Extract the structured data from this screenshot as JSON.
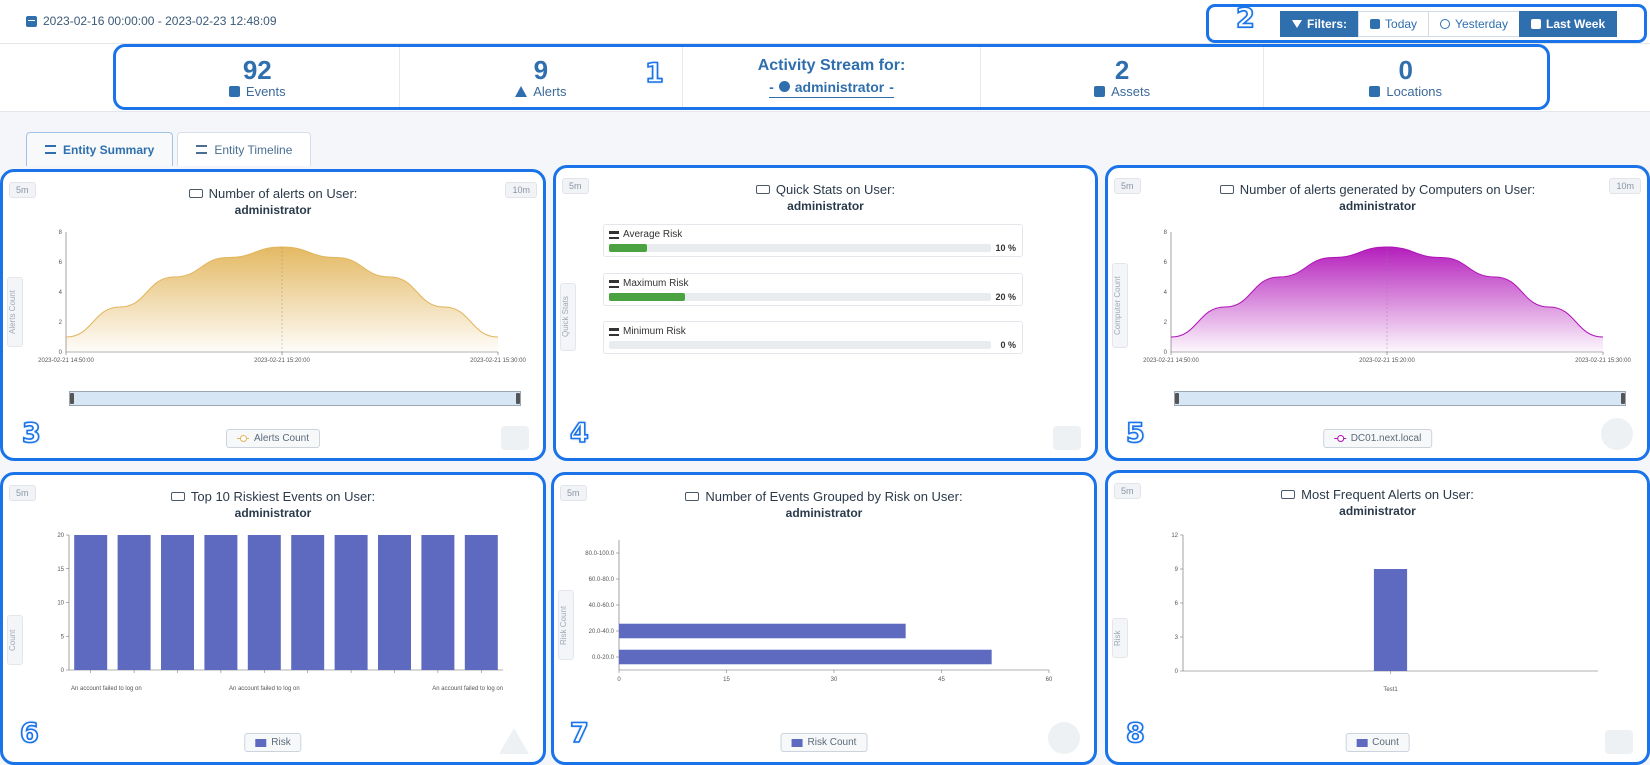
{
  "header": {
    "date_range": "2023-02-16 00:00:00 - 2023-02-23 12:48:09",
    "filters": [
      {
        "label": "Filters:",
        "icon": "funnel-icon",
        "primary": true
      },
      {
        "label": "Today",
        "icon": "calendar-icon",
        "primary": false
      },
      {
        "label": "Yesterday",
        "icon": "history-icon",
        "primary": false
      },
      {
        "label": "Last Week",
        "icon": "calendar-icon",
        "primary": true
      }
    ]
  },
  "stats": {
    "events": {
      "value": "92",
      "label": "Events"
    },
    "alerts": {
      "value": "9",
      "label": "Alerts"
    },
    "activity_title": "Activity Stream for:",
    "activity_user": "administrator",
    "assets": {
      "value": "2",
      "label": "Assets"
    },
    "locations": {
      "value": "0",
      "label": "Locations"
    }
  },
  "tabs": [
    {
      "label": "Entity Summary",
      "active": true
    },
    {
      "label": "Entity Timeline",
      "active": false
    }
  ],
  "badges": [
    "1",
    "2",
    "3",
    "4",
    "5",
    "6",
    "7",
    "8"
  ],
  "panels": {
    "alerts_on_user": {
      "title": "Number of alerts on User:",
      "subtitle": "administrator",
      "tag_left": "5m",
      "tag_right": "10m",
      "side_label": "Alerts Count",
      "legend": "Alerts Count"
    },
    "quick_stats": {
      "title": "Quick Stats on User:",
      "subtitle": "administrator",
      "tag_left": "5m",
      "side_label": "Quick Stats",
      "rows": [
        {
          "label": "Average Risk",
          "value": 10,
          "display": "10 %"
        },
        {
          "label": "Maximum Risk",
          "value": 20,
          "display": "20 %"
        },
        {
          "label": "Minimum Risk",
          "value": 0,
          "display": "0 %"
        }
      ]
    },
    "alerts_by_computers": {
      "title": "Number of alerts generated by Computers on User:",
      "subtitle": "administrator",
      "tag_left": "5m",
      "tag_right": "10m",
      "side_label": "Computer Count",
      "legend": "DC01.next.local"
    },
    "riskiest_events": {
      "title": "Top 10 Riskiest Events on User:",
      "subtitle": "administrator",
      "tag_left": "5m",
      "side_label": "Count",
      "legend": "Risk"
    },
    "events_by_risk": {
      "title": "Number of Events Grouped by Risk on User:",
      "subtitle": "administrator",
      "tag_left": "5m",
      "side_label": "Risk Count",
      "legend": "Risk Count"
    },
    "frequent_alerts": {
      "title": "Most Frequent Alerts on User:",
      "subtitle": "administrator",
      "tag_left": "5m",
      "side_label": "Risk",
      "legend": "Count"
    }
  },
  "colors": {
    "accent": "#2f6fae",
    "annotation": "#1a73e8",
    "area_gold": "#e2b55a",
    "area_purple": "#b012b8",
    "bar_blue": "#5e6ac0",
    "risk_green": "#4aa241"
  },
  "chart_data": [
    {
      "type": "area",
      "x_ticks": [
        "2023-02-21 14:50:00",
        "2023-02-21 15:20:00",
        "2023-02-21 15:30:00"
      ],
      "y_ticks": [
        0,
        2,
        4,
        6,
        8
      ],
      "ylim": [
        0,
        8
      ],
      "series": [
        {
          "name": "Alerts Count",
          "values": [
            1,
            3,
            5,
            6.3,
            7,
            6.3,
            5,
            3,
            1
          ]
        }
      ]
    },
    {
      "type": "area",
      "x_ticks": [
        "2023-02-21 14:50:00",
        "2023-02-21 15:20:00",
        "2023-02-21 15:30:00"
      ],
      "y_ticks": [
        0,
        2,
        4,
        6,
        8
      ],
      "ylim": [
        0,
        8
      ],
      "series": [
        {
          "name": "DC01.next.local",
          "values": [
            1,
            3,
            5,
            6.3,
            7,
            6.3,
            5,
            3,
            1
          ]
        }
      ]
    },
    {
      "type": "bar",
      "categories": [
        "An account failed to log on",
        "",
        "",
        "",
        "An account failed to log on",
        "",
        "",
        "",
        "",
        "An account failed to log on"
      ],
      "values": [
        20,
        20,
        20,
        20,
        20,
        20,
        20,
        20,
        20,
        20
      ],
      "y_ticks": [
        0,
        5,
        10,
        15,
        20
      ],
      "ylim": [
        0,
        20
      ],
      "series_name": "Risk"
    },
    {
      "type": "bar",
      "orientation": "horizontal",
      "categories": [
        "0.0-20.0",
        "20.0-40.0",
        "40.0-60.0",
        "60.0-80.0",
        "80.0-100.0"
      ],
      "values": [
        52,
        40,
        0,
        0,
        0
      ],
      "x_ticks": [
        0,
        15,
        30,
        45,
        60
      ],
      "xlim": [
        0,
        60
      ],
      "series_name": "Risk Count"
    },
    {
      "type": "bar",
      "categories": [
        "Test1"
      ],
      "values": [
        9
      ],
      "y_ticks": [
        0,
        3,
        6,
        9,
        12
      ],
      "ylim": [
        0,
        12
      ],
      "series_name": "Count"
    }
  ]
}
